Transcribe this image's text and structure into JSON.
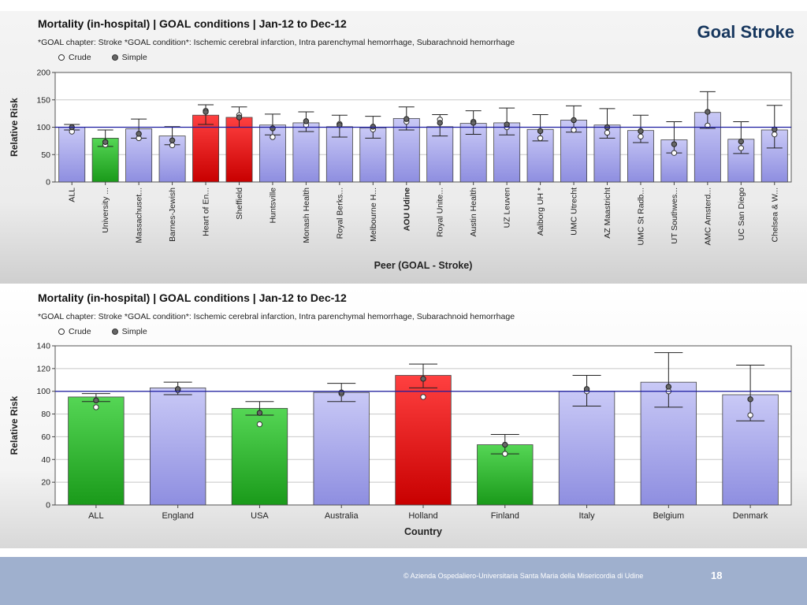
{
  "brand": "Goal Stroke",
  "footer": {
    "copyright": "© Azienda Ospedaliero-Universitaria Santa Maria della Misericordia di Udine",
    "page_number": "18"
  },
  "legend": {
    "crude": "Crude",
    "simple": "Simple"
  },
  "colors": {
    "neutral": "#9a9ae6",
    "worse": "#e01010",
    "better": "#22aa22",
    "reference_line": "#1a1aa0"
  },
  "chart_data": [
    {
      "type": "bar",
      "title": "Mortality (in-hospital) | GOAL conditions | Jan-12 to Dec-12",
      "subtitle": "*GOAL chapter: Stroke  *GOAL condition*: Ischemic cerebral infarction, Intra parenchymal hemorrhage, Subarachnoid hemorrhage",
      "xlabel": "Peer (GOAL - Stroke)",
      "ylabel": "Relative Risk",
      "ylim": [
        0,
        200
      ],
      "yticks": [
        0,
        50,
        100,
        150,
        200
      ],
      "reference_value": 100,
      "grid": true,
      "categories": [
        "ALL",
        "University ...",
        "Massachuset...",
        "Barnes-Jewish",
        "Heart of En...",
        "Sheffield",
        "Huntsville",
        "Monash Health",
        "Royal Berks...",
        "Melbourne H...",
        "AOU Udine",
        "Royal Unite...",
        "Austin Health",
        "UZ Leuven",
        "Aalborg UH *",
        "UMC Utrecht",
        "AZ Maastricht",
        "UMC St Radb...",
        "UT Southwes...",
        "AMC Amsterd...",
        "UC San Diego",
        "Chelsea & W..."
      ],
      "highlight_category": "AOU Udine",
      "values": [
        100,
        80,
        97,
        84,
        122,
        118,
        104,
        108,
        101,
        99,
        116,
        101,
        107,
        108,
        96,
        113,
        104,
        94,
        77,
        127,
        78,
        95
      ],
      "ci_lower": [
        95,
        65,
        80,
        68,
        105,
        100,
        86,
        92,
        82,
        80,
        95,
        84,
        87,
        86,
        75,
        91,
        80,
        72,
        53,
        98,
        52,
        62
      ],
      "ci_upper": [
        105,
        95,
        115,
        101,
        141,
        137,
        124,
        128,
        122,
        120,
        137,
        123,
        130,
        135,
        123,
        139,
        134,
        122,
        110,
        165,
        110,
        140
      ],
      "series": [
        {
          "name": "Crude",
          "values": [
            92,
            68,
            80,
            67,
            130,
            122,
            82,
            104,
            106,
            96,
            110,
            114,
            110,
            100,
            80,
            95,
            90,
            83,
            53,
            103,
            62,
            87
          ]
        },
        {
          "name": "Simple",
          "values": [
            100,
            73,
            88,
            76,
            128,
            118,
            98,
            111,
            104,
            101,
            115,
            108,
            108,
            105,
            93,
            113,
            100,
            93,
            69,
            128,
            74,
            96
          ]
        }
      ],
      "bar_status": [
        "neutral",
        "better",
        "neutral",
        "neutral",
        "worse",
        "worse",
        "neutral",
        "neutral",
        "neutral",
        "neutral",
        "neutral",
        "neutral",
        "neutral",
        "neutral",
        "neutral",
        "neutral",
        "neutral",
        "neutral",
        "neutral",
        "neutral",
        "neutral",
        "neutral"
      ]
    },
    {
      "type": "bar",
      "title": "Mortality (in-hospital) | GOAL conditions | Jan-12 to Dec-12",
      "subtitle": "*GOAL chapter: Stroke  *GOAL condition*: Ischemic cerebral infarction, Intra parenchymal hemorrhage, Subarachnoid hemorrhage",
      "xlabel": "Country",
      "ylabel": "Relative Risk",
      "ylim": [
        0,
        140
      ],
      "yticks": [
        0,
        20,
        40,
        60,
        80,
        100,
        120,
        140
      ],
      "reference_value": 100,
      "grid": true,
      "categories": [
        "ALL",
        "England",
        "USA",
        "Australia",
        "Holland",
        "Finland",
        "Italy",
        "Belgium",
        "Denmark"
      ],
      "values": [
        95,
        103,
        85,
        99,
        114,
        53,
        100,
        108,
        97
      ],
      "ci_lower": [
        91,
        97,
        79,
        91,
        103,
        45,
        87,
        86,
        74
      ],
      "ci_upper": [
        98,
        108,
        91,
        107,
        124,
        62,
        114,
        134,
        123
      ],
      "series": [
        {
          "name": "Crude",
          "values": [
            86,
            101,
            71,
            98,
            95,
            45,
            100,
            100,
            79
          ]
        },
        {
          "name": "Simple",
          "values": [
            92,
            102,
            81,
            99,
            111,
            53,
            102,
            104,
            93
          ]
        }
      ],
      "bar_status": [
        "better",
        "neutral",
        "better",
        "neutral",
        "worse",
        "better",
        "neutral",
        "neutral",
        "neutral"
      ]
    }
  ]
}
